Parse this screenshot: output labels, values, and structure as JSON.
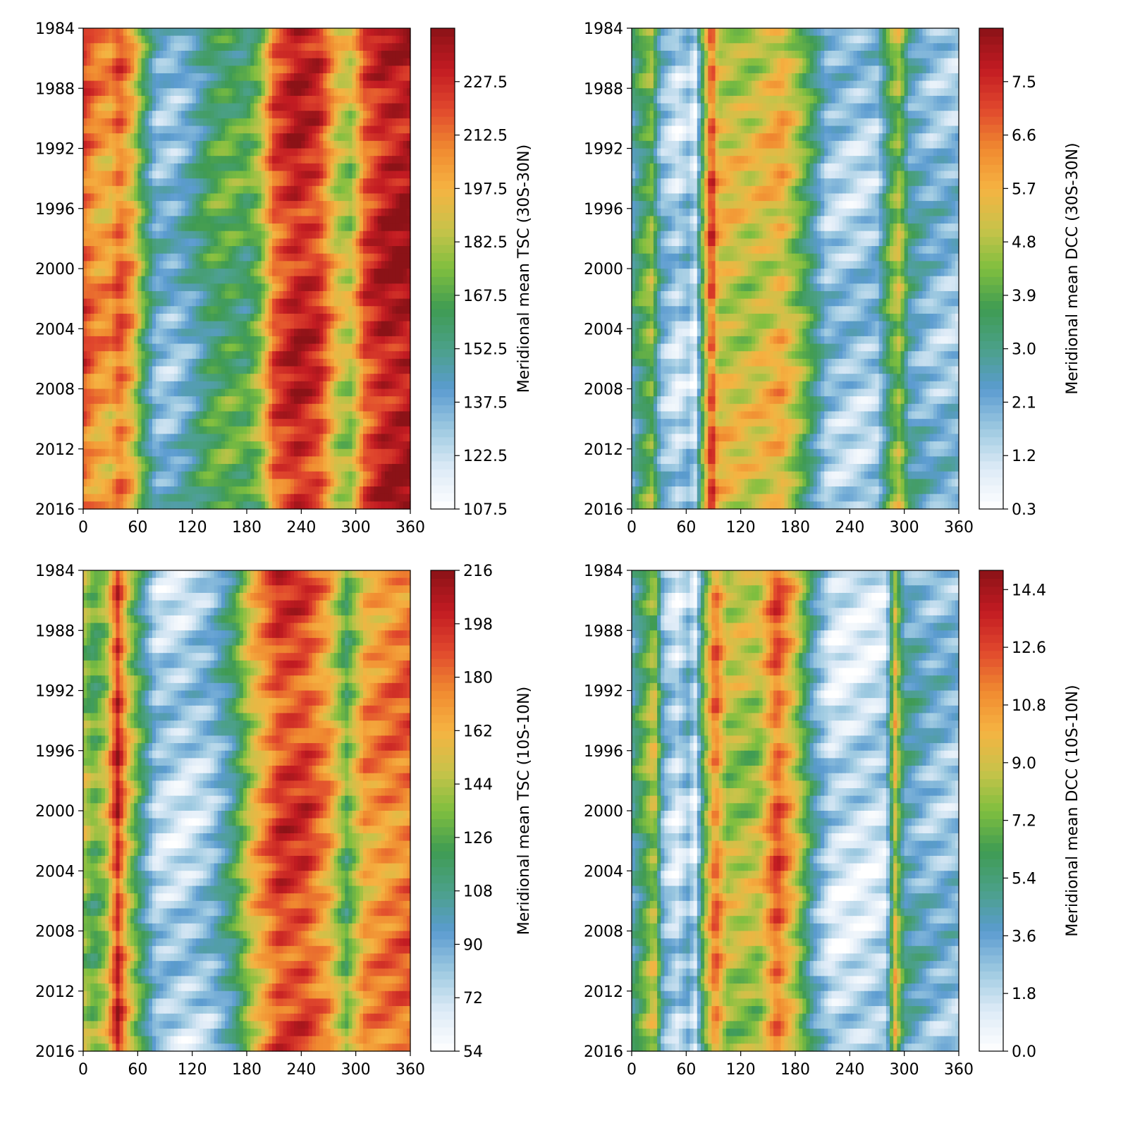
{
  "figure": {
    "colorscale": [
      "#ffffff",
      "#deebf7",
      "#9ecae1",
      "#5b9bd0",
      "#4ba089",
      "#3f9b53",
      "#7fbf3f",
      "#c9c34a",
      "#f5b342",
      "#f08a30",
      "#e0472d",
      "#c21b22",
      "#8b1217"
    ]
  },
  "chart_data": [
    {
      "type": "heatmap",
      "panel": "top-left",
      "x_ticks": [
        "0",
        "60",
        "120",
        "180",
        "240",
        "300",
        "360"
      ],
      "y_ticks": [
        "1984",
        "1988",
        "1992",
        "1996",
        "2000",
        "2004",
        "2008",
        "2012",
        "2016"
      ],
      "xlim": [
        0,
        360
      ],
      "ylim": [
        2016,
        1984
      ],
      "colorbar": {
        "label": "Meridional mean TSC (30S-30N)",
        "ticks": [
          "107.5",
          "122.5",
          "137.5",
          "152.5",
          "167.5",
          "182.5",
          "197.5",
          "212.5",
          "227.5"
        ],
        "vmin": 107.5,
        "vmax": 242.5
      },
      "profile": [
        [
          0,
          0.82
        ],
        [
          15,
          0.72
        ],
        [
          30,
          0.7
        ],
        [
          40,
          0.8
        ],
        [
          55,
          0.66
        ],
        [
          65,
          0.45
        ],
        [
          80,
          0.22
        ],
        [
          100,
          0.2
        ],
        [
          120,
          0.28
        ],
        [
          140,
          0.4
        ],
        [
          160,
          0.44
        ],
        [
          180,
          0.4
        ],
        [
          195,
          0.52
        ],
        [
          210,
          0.8
        ],
        [
          235,
          0.92
        ],
        [
          260,
          0.86
        ],
        [
          280,
          0.6
        ],
        [
          295,
          0.55
        ],
        [
          310,
          0.82
        ],
        [
          330,
          0.93
        ],
        [
          360,
          0.96
        ]
      ]
    },
    {
      "type": "heatmap",
      "panel": "top-right",
      "x_ticks": [
        "0",
        "60",
        "120",
        "180",
        "240",
        "300",
        "360"
      ],
      "y_ticks": [
        "1984",
        "1988",
        "1992",
        "1996",
        "2000",
        "2004",
        "2008",
        "2012",
        "2016"
      ],
      "xlim": [
        0,
        360
      ],
      "ylim": [
        2016,
        1984
      ],
      "colorbar": {
        "label": "Meridional mean DCC (30S-30N)",
        "ticks": [
          "0.3",
          "1.2",
          "2.1",
          "3.0",
          "3.9",
          "4.8",
          "5.7",
          "6.6",
          "7.5"
        ],
        "vmin": 0.3,
        "vmax": 8.4
      },
      "profile": [
        [
          0,
          0.3
        ],
        [
          10,
          0.4
        ],
        [
          22,
          0.5
        ],
        [
          32,
          0.22
        ],
        [
          50,
          0.12
        ],
        [
          62,
          0.18
        ],
        [
          70,
          0.1
        ],
        [
          78,
          0.45
        ],
        [
          88,
          0.88
        ],
        [
          95,
          0.62
        ],
        [
          110,
          0.6
        ],
        [
          130,
          0.58
        ],
        [
          150,
          0.62
        ],
        [
          165,
          0.66
        ],
        [
          185,
          0.5
        ],
        [
          200,
          0.35
        ],
        [
          215,
          0.18
        ],
        [
          250,
          0.15
        ],
        [
          270,
          0.18
        ],
        [
          285,
          0.45
        ],
        [
          295,
          0.55
        ],
        [
          305,
          0.3
        ],
        [
          330,
          0.2
        ],
        [
          360,
          0.18
        ]
      ]
    },
    {
      "type": "heatmap",
      "panel": "bottom-left",
      "x_ticks": [
        "0",
        "60",
        "120",
        "180",
        "240",
        "300",
        "360"
      ],
      "y_ticks": [
        "1984",
        "1988",
        "1992",
        "1996",
        "2000",
        "2004",
        "2008",
        "2012",
        "2016"
      ],
      "xlim": [
        0,
        360
      ],
      "ylim": [
        2016,
        1984
      ],
      "colorbar": {
        "label": "Meridional mean TSC (10S-10N)",
        "ticks": [
          "54",
          "72",
          "90",
          "108",
          "126",
          "144",
          "162",
          "180",
          "198",
          "216"
        ],
        "vmin": 54,
        "vmax": 216
      },
      "profile": [
        [
          0,
          0.55
        ],
        [
          12,
          0.45
        ],
        [
          25,
          0.55
        ],
        [
          38,
          0.9
        ],
        [
          50,
          0.6
        ],
        [
          62,
          0.4
        ],
        [
          80,
          0.15
        ],
        [
          110,
          0.12
        ],
        [
          140,
          0.18
        ],
        [
          165,
          0.35
        ],
        [
          185,
          0.6
        ],
        [
          215,
          0.85
        ],
        [
          245,
          0.85
        ],
        [
          270,
          0.7
        ],
        [
          290,
          0.45
        ],
        [
          310,
          0.7
        ],
        [
          335,
          0.75
        ],
        [
          360,
          0.78
        ]
      ]
    },
    {
      "type": "heatmap",
      "panel": "bottom-right",
      "x_ticks": [
        "0",
        "60",
        "120",
        "180",
        "240",
        "300",
        "360"
      ],
      "y_ticks": [
        "1984",
        "1988",
        "1992",
        "1996",
        "2000",
        "2004",
        "2008",
        "2012",
        "2016"
      ],
      "xlim": [
        0,
        360
      ],
      "ylim": [
        2016,
        1984
      ],
      "colorbar": {
        "label": "Meridional mean DCC (10S-10N)",
        "ticks": [
          "0.0",
          "1.8",
          "3.6",
          "5.4",
          "7.2",
          "9.0",
          "10.8",
          "12.6",
          "14.4"
        ],
        "vmin": 0,
        "vmax": 15
      },
      "profile": [
        [
          0,
          0.3
        ],
        [
          12,
          0.42
        ],
        [
          25,
          0.58
        ],
        [
          35,
          0.2
        ],
        [
          50,
          0.1
        ],
        [
          62,
          0.2
        ],
        [
          70,
          0.1
        ],
        [
          80,
          0.48
        ],
        [
          92,
          0.78
        ],
        [
          105,
          0.55
        ],
        [
          120,
          0.55
        ],
        [
          140,
          0.55
        ],
        [
          160,
          0.82
        ],
        [
          180,
          0.6
        ],
        [
          200,
          0.28
        ],
        [
          220,
          0.1
        ],
        [
          260,
          0.1
        ],
        [
          280,
          0.12
        ],
        [
          290,
          0.6
        ],
        [
          300,
          0.3
        ],
        [
          330,
          0.2
        ],
        [
          360,
          0.18
        ]
      ]
    }
  ]
}
